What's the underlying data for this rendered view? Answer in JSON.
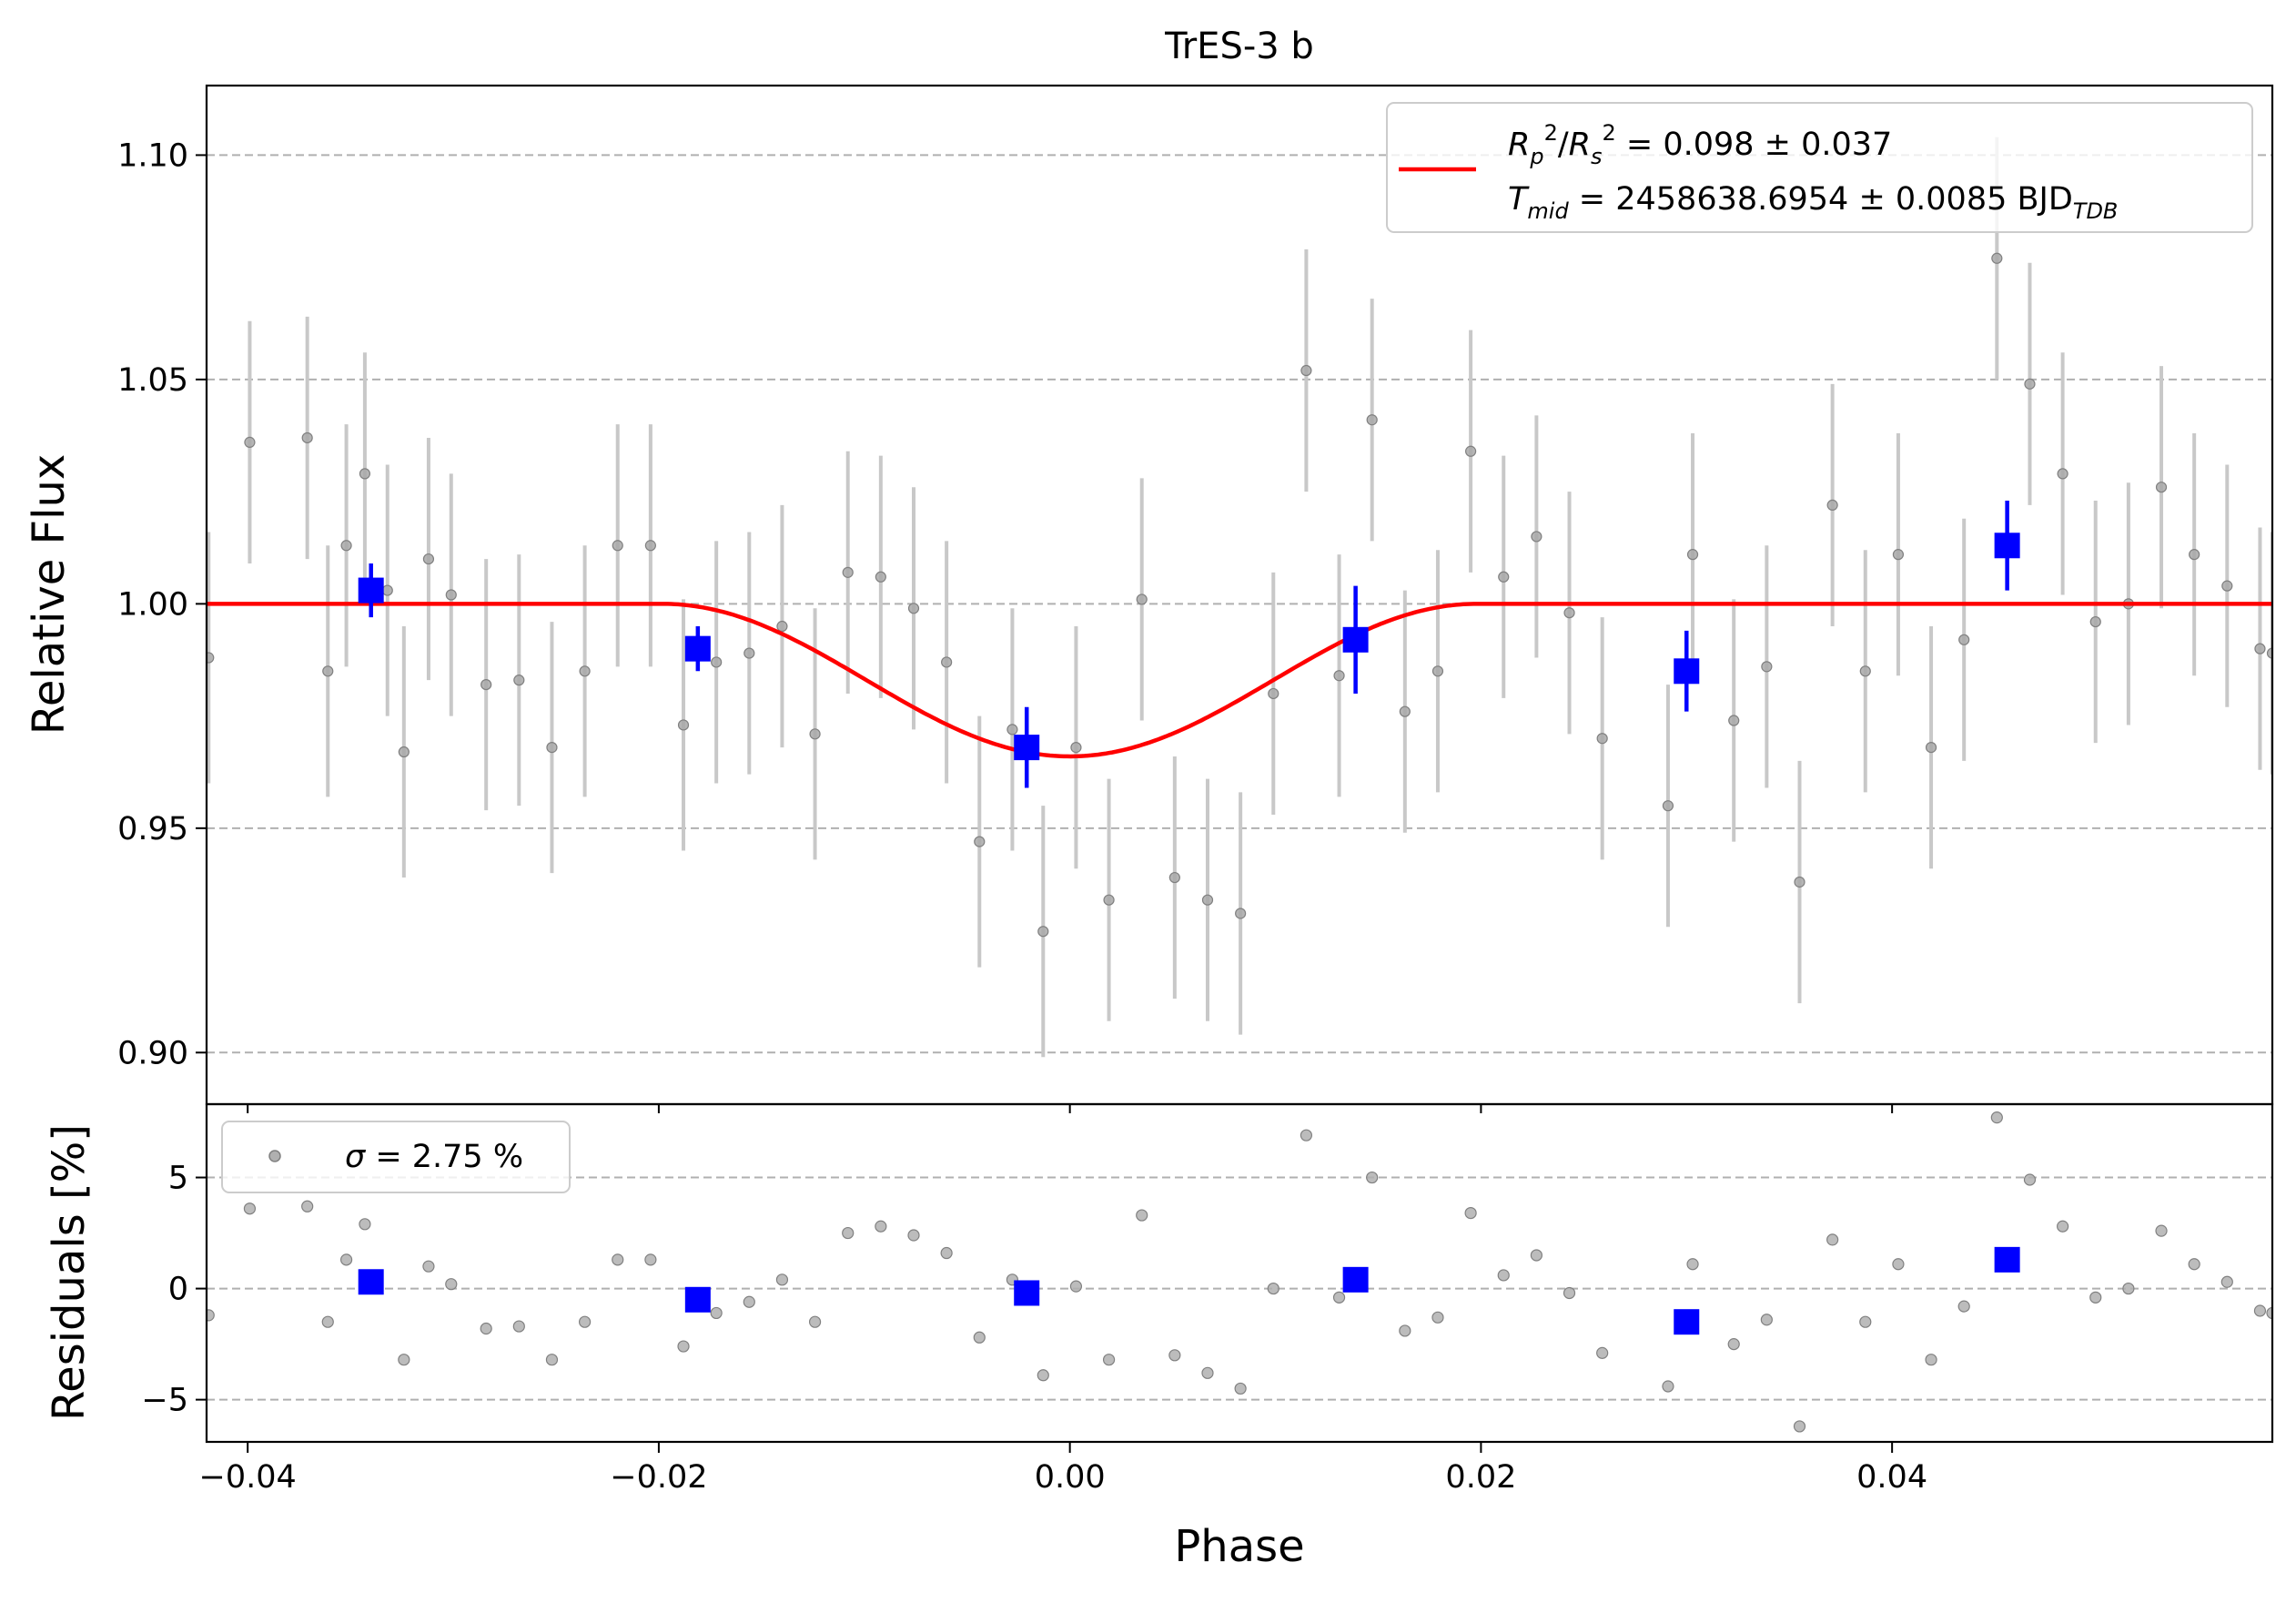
{
  "chart_data": [
    {
      "type": "scatter",
      "title": "TrES-3 b",
      "xlabel": "",
      "ylabel": "Relative Flux",
      "xlim": [
        -0.042,
        0.0585
      ],
      "ylim": [
        0.8885,
        1.1155
      ],
      "x_ticks": [
        -0.04,
        -0.02,
        0.0,
        0.02,
        0.04
      ],
      "y_ticks": [
        0.9,
        0.95,
        1.0,
        1.05,
        1.1
      ],
      "y_tick_labels": [
        "0.90",
        "0.95",
        "1.00",
        "1.05",
        "1.10"
      ],
      "grid": "horizontal dashed",
      "legend": {
        "location": "upper right",
        "line1_main": "R",
        "line1_text": " = 0.098 ± 0.037",
        "line2_main": "T",
        "line2_sub": "mid",
        "line2_text": " = 2458638.6954 ± 0.0085 BJD",
        "line2_unit_sub": "TDB"
      },
      "colors": {
        "raw": "#808080",
        "raw_err": "#c8c8c8",
        "binned": "#0000ff",
        "model": "#ff0000"
      },
      "series": [
        {
          "kind": "raw points",
          "points": [
            [
              -0.0419,
              0.988,
              0.028
            ],
            [
              -0.0399,
              1.036,
              0.027
            ],
            [
              -0.0371,
              1.037,
              0.027
            ],
            [
              -0.0361,
              0.985,
              0.028
            ],
            [
              -0.0352,
              1.013,
              0.027
            ],
            [
              -0.0343,
              1.029,
              0.027
            ],
            [
              -0.0332,
              1.003,
              0.028
            ],
            [
              -0.0324,
              0.967,
              0.028
            ],
            [
              -0.0312,
              1.01,
              0.027
            ],
            [
              -0.0301,
              1.002,
              0.027
            ],
            [
              -0.0284,
              0.982,
              0.028
            ],
            [
              -0.0268,
              0.983,
              0.028
            ],
            [
              -0.0252,
              0.968,
              0.028
            ],
            [
              -0.0236,
              0.985,
              0.028
            ],
            [
              -0.022,
              1.013,
              0.027
            ],
            [
              -0.0204,
              1.013,
              0.027
            ],
            [
              -0.0188,
              0.973,
              0.028
            ],
            [
              -0.0172,
              0.987,
              0.027
            ],
            [
              -0.0156,
              0.989,
              0.027
            ],
            [
              -0.014,
              0.995,
              0.027
            ],
            [
              -0.0124,
              0.971,
              0.028
            ],
            [
              -0.0108,
              1.007,
              0.027
            ],
            [
              -0.0092,
              1.006,
              0.027
            ],
            [
              -0.0076,
              0.999,
              0.027
            ],
            [
              -0.006,
              0.987,
              0.027
            ],
            [
              -0.0044,
              0.947,
              0.028
            ],
            [
              -0.0028,
              0.972,
              0.027
            ],
            [
              -0.0013,
              0.927,
              0.028
            ],
            [
              0.0003,
              0.968,
              0.027
            ],
            [
              0.0019,
              0.934,
              0.027
            ],
            [
              0.0035,
              1.001,
              0.027
            ],
            [
              0.0051,
              0.939,
              0.027
            ],
            [
              0.0067,
              0.934,
              0.027
            ],
            [
              0.0083,
              0.931,
              0.027
            ],
            [
              0.0099,
              0.98,
              0.027
            ],
            [
              0.0115,
              1.052,
              0.027
            ],
            [
              0.0131,
              0.984,
              0.027
            ],
            [
              0.0147,
              1.041,
              0.027
            ],
            [
              0.0163,
              0.976,
              0.027
            ],
            [
              0.0179,
              0.985,
              0.027
            ],
            [
              0.0195,
              1.034,
              0.027
            ],
            [
              0.0211,
              1.006,
              0.027
            ],
            [
              0.0227,
              1.015,
              0.027
            ],
            [
              0.0243,
              0.998,
              0.027
            ],
            [
              0.0259,
              0.97,
              0.027
            ],
            [
              0.0291,
              0.955,
              0.027
            ],
            [
              0.0303,
              1.011,
              0.027
            ],
            [
              0.0323,
              0.974,
              0.027
            ],
            [
              0.0339,
              0.986,
              0.027
            ],
            [
              0.0355,
              0.938,
              0.027
            ],
            [
              0.0371,
              1.022,
              0.027
            ],
            [
              0.0387,
              0.985,
              0.027
            ],
            [
              0.0403,
              1.011,
              0.027
            ],
            [
              0.0419,
              0.968,
              0.027
            ],
            [
              0.0435,
              0.992,
              0.027
            ],
            [
              0.0451,
              1.077,
              0.027
            ],
            [
              0.0467,
              1.049,
              0.027
            ],
            [
              0.0483,
              1.029,
              0.027
            ],
            [
              0.0499,
              0.996,
              0.027
            ],
            [
              0.0515,
              1.0,
              0.027
            ],
            [
              0.0531,
              1.026,
              0.027
            ],
            [
              0.0547,
              1.011,
              0.027
            ],
            [
              0.0563,
              1.004,
              0.027
            ],
            [
              0.0579,
              0.99,
              0.027
            ],
            [
              0.0585,
              0.989,
              0.027
            ]
          ]
        },
        {
          "kind": "binned points",
          "points": [
            [
              -0.034,
              1.003,
              0.006
            ],
            [
              -0.0181,
              0.99,
              0.005
            ],
            [
              -0.0021,
              0.968,
              0.009
            ],
            [
              0.0139,
              0.992,
              0.012
            ],
            [
              0.03,
              0.985,
              0.009
            ],
            [
              0.0456,
              1.013,
              0.01
            ]
          ]
        },
        {
          "kind": "transit model",
          "ingress": -0.0198,
          "egress": 0.0198,
          "depth": 0.034
        }
      ]
    },
    {
      "type": "scatter",
      "xlabel": "Phase",
      "ylabel": "Residuals [%]",
      "xlim": [
        -0.042,
        0.0585
      ],
      "ylim": [
        -6.9,
        8.3
      ],
      "x_ticks": [
        -0.04,
        -0.02,
        0.0,
        0.02,
        0.04
      ],
      "x_tick_labels": [
        "−0.04",
        "−0.02",
        "0.00",
        "0.02",
        "0.04"
      ],
      "y_ticks": [
        -5,
        0,
        5
      ],
      "y_tick_labels": [
        "−5",
        "0",
        "5"
      ],
      "grid": "horizontal dashed",
      "legend": {
        "location": "upper left",
        "sigma": "σ",
        "text": " = 2.75 %"
      },
      "series": [
        {
          "kind": "raw residuals",
          "points": [
            [
              -0.0419,
              -1.2
            ],
            [
              -0.0399,
              3.6
            ],
            [
              -0.0371,
              3.7
            ],
            [
              -0.0361,
              -1.5
            ],
            [
              -0.0352,
              1.3
            ],
            [
              -0.0343,
              2.9
            ],
            [
              -0.0324,
              -3.2
            ],
            [
              -0.0312,
              1.0
            ],
            [
              -0.0301,
              0.2
            ],
            [
              -0.0284,
              -1.8
            ],
            [
              -0.0268,
              -1.7
            ],
            [
              -0.0252,
              -3.2
            ],
            [
              -0.0236,
              -1.5
            ],
            [
              -0.022,
              1.3
            ],
            [
              -0.0204,
              1.3
            ],
            [
              -0.0188,
              -2.6
            ],
            [
              -0.0172,
              -1.1
            ],
            [
              -0.0156,
              -0.6
            ],
            [
              -0.014,
              0.4
            ],
            [
              -0.0124,
              -1.5
            ],
            [
              -0.0108,
              2.5
            ],
            [
              -0.0092,
              2.8
            ],
            [
              -0.0076,
              2.4
            ],
            [
              -0.006,
              1.6
            ],
            [
              -0.0044,
              -2.2
            ],
            [
              -0.0028,
              0.4
            ],
            [
              -0.0013,
              -3.9
            ],
            [
              0.0003,
              0.1
            ],
            [
              0.0019,
              -3.2
            ],
            [
              0.0035,
              3.3
            ],
            [
              0.0051,
              -3.0
            ],
            [
              0.0067,
              -3.8
            ],
            [
              0.0083,
              -4.5
            ],
            [
              0.0099,
              0.0
            ],
            [
              0.0115,
              6.9
            ],
            [
              0.0131,
              -0.4
            ],
            [
              0.0147,
              5.0
            ],
            [
              0.0163,
              -1.9
            ],
            [
              0.0179,
              -1.3
            ],
            [
              0.0195,
              3.4
            ],
            [
              0.0211,
              0.6
            ],
            [
              0.0227,
              1.5
            ],
            [
              0.0243,
              -0.2
            ],
            [
              0.0259,
              -2.9
            ],
            [
              0.0291,
              -4.4
            ],
            [
              0.0303,
              1.1
            ],
            [
              0.0323,
              -2.5
            ],
            [
              0.0339,
              -1.4
            ],
            [
              0.0355,
              -6.2
            ],
            [
              0.0371,
              2.2
            ],
            [
              0.0387,
              -1.5
            ],
            [
              0.0403,
              1.1
            ],
            [
              0.0419,
              -3.2
            ],
            [
              0.0435,
              -0.8
            ],
            [
              0.0451,
              7.7
            ],
            [
              0.0467,
              4.9
            ],
            [
              0.0483,
              2.8
            ],
            [
              0.0499,
              -0.4
            ],
            [
              0.0515,
              -0.0
            ],
            [
              0.0531,
              2.6
            ],
            [
              0.0547,
              1.1
            ],
            [
              0.0563,
              0.3
            ],
            [
              0.0579,
              -1.0
            ],
            [
              0.0585,
              -1.1
            ]
          ]
        },
        {
          "kind": "binned residuals",
          "points": [
            [
              -0.034,
              0.3
            ],
            [
              -0.0181,
              -0.5
            ],
            [
              -0.0021,
              -0.2
            ],
            [
              0.0139,
              0.4
            ],
            [
              0.03,
              -1.5
            ],
            [
              0.0456,
              1.3
            ]
          ]
        }
      ]
    }
  ]
}
